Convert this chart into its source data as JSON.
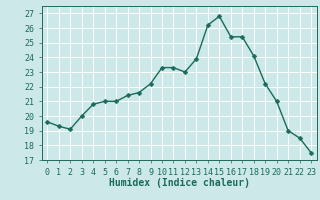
{
  "x": [
    0,
    1,
    2,
    3,
    4,
    5,
    6,
    7,
    8,
    9,
    10,
    11,
    12,
    13,
    14,
    15,
    16,
    17,
    18,
    19,
    20,
    21,
    22,
    23
  ],
  "y": [
    19.6,
    19.3,
    19.1,
    20.0,
    20.8,
    21.0,
    21.0,
    21.4,
    21.6,
    22.2,
    23.3,
    23.3,
    23.0,
    23.9,
    26.2,
    26.8,
    25.4,
    25.4,
    24.1,
    22.2,
    21.0,
    19.0,
    18.5,
    17.5
  ],
  "line_color": "#1a6b5a",
  "marker": "D",
  "marker_size": 2.5,
  "line_width": 1.0,
  "xlabel": "Humidex (Indice chaleur)",
  "xlim": [
    -0.5,
    23.5
  ],
  "ylim": [
    17,
    27.5
  ],
  "yticks": [
    17,
    18,
    19,
    20,
    21,
    22,
    23,
    24,
    25,
    26,
    27
  ],
  "xticks": [
    0,
    1,
    2,
    3,
    4,
    5,
    6,
    7,
    8,
    9,
    10,
    11,
    12,
    13,
    14,
    15,
    16,
    17,
    18,
    19,
    20,
    21,
    22,
    23
  ],
  "bg_color": "#cce8e8",
  "grid_color": "#ffffff",
  "tick_color": "#1a6b5a",
  "label_color": "#1a6b5a",
  "xlabel_fontsize": 7,
  "tick_fontsize": 6
}
